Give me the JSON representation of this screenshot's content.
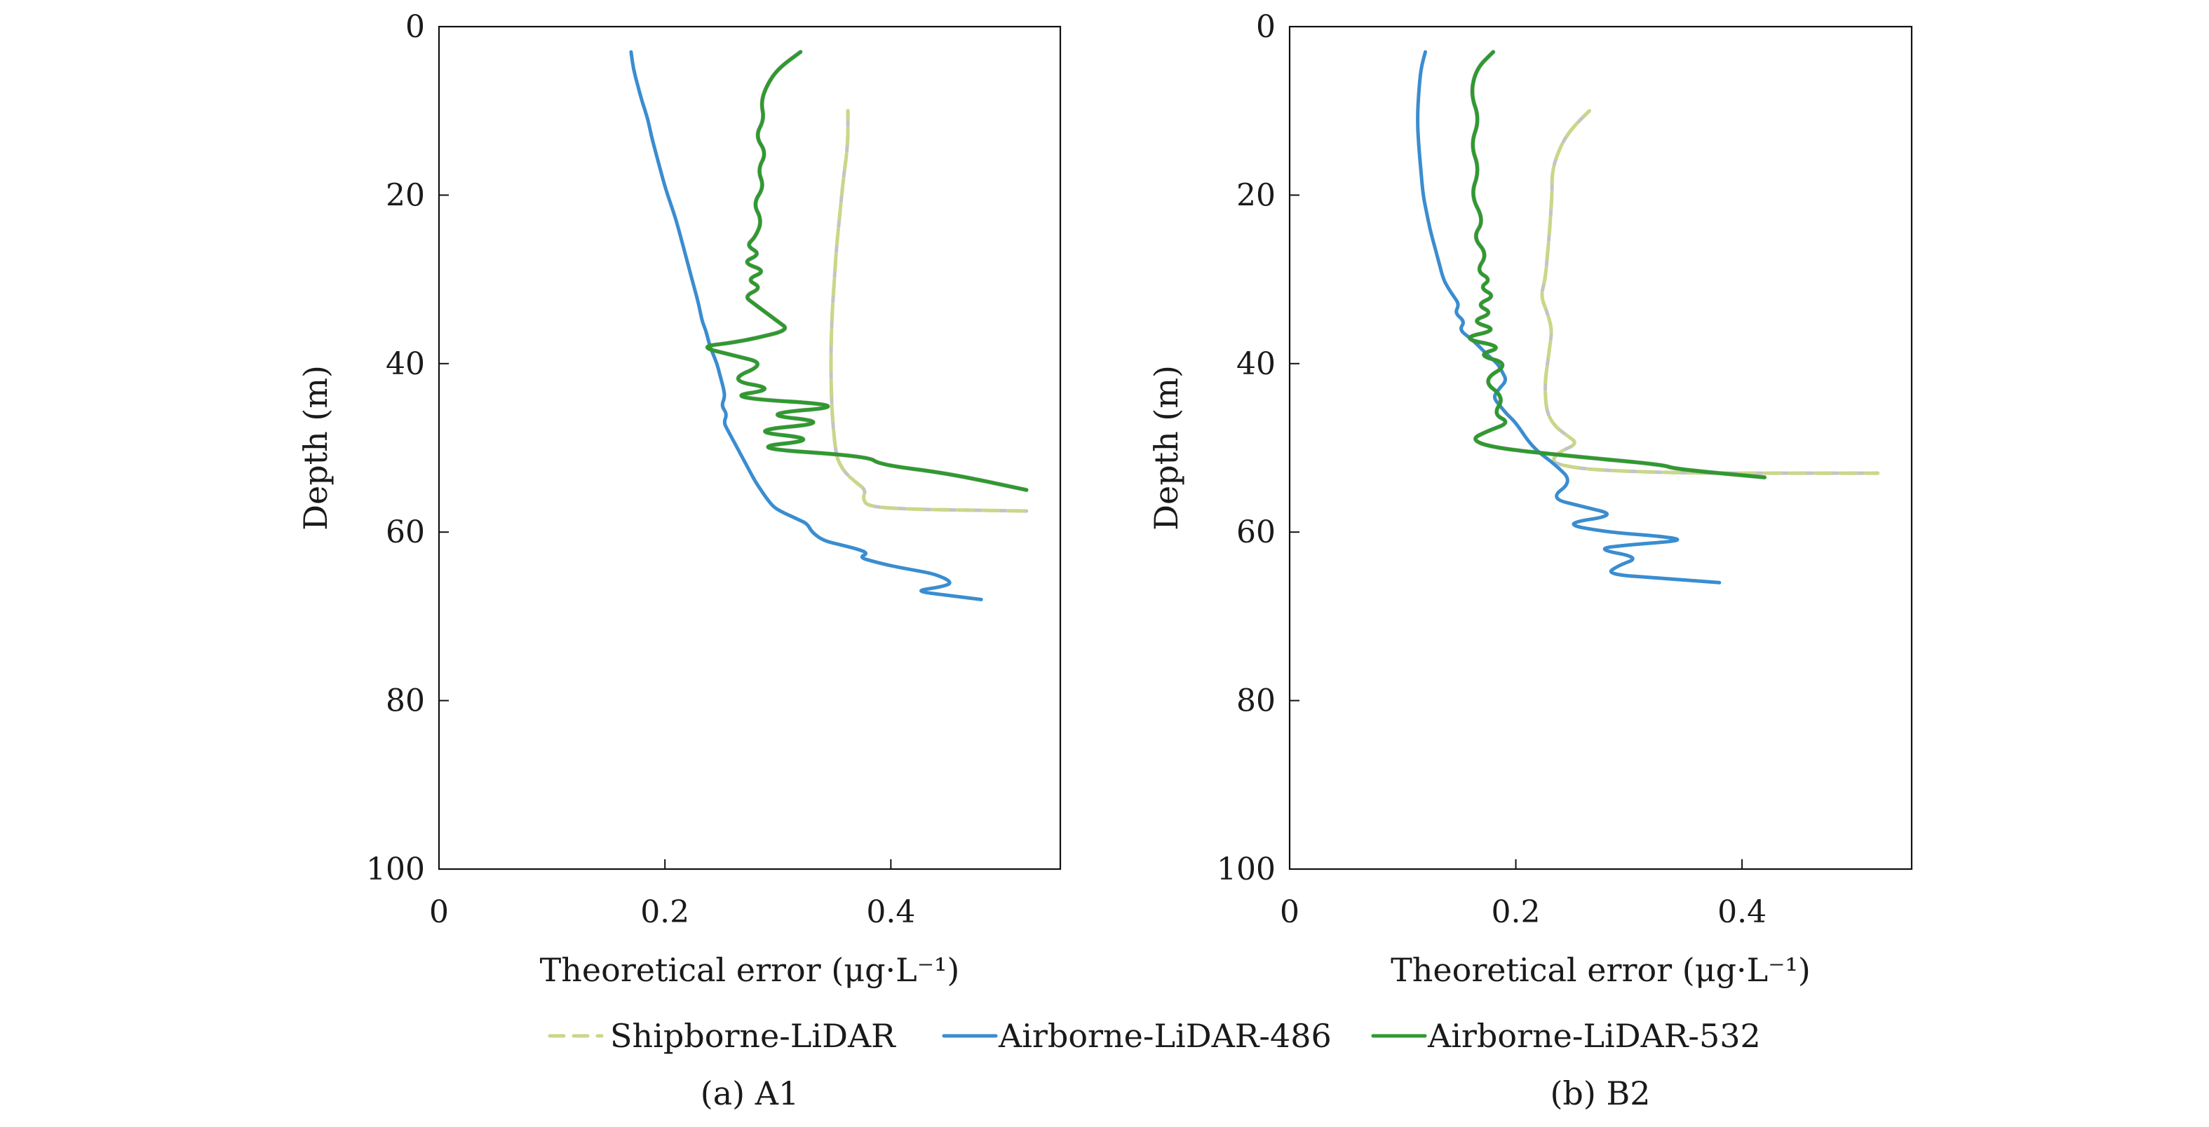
{
  "chart_data": [
    {
      "type": "line",
      "caption": "(a) A1",
      "xlabel": "Theoretical error (μg·L⁻¹)",
      "ylabel": "Depth (m)",
      "xlim": [
        0,
        0.55
      ],
      "ylim": [
        0,
        100
      ],
      "y_inverted": true,
      "xticks": [
        0,
        0.2,
        0.4
      ],
      "xtick_labels": [
        "0",
        "0.2",
        "0.4"
      ],
      "yticks": [
        0,
        20,
        40,
        60,
        80,
        100
      ],
      "ytick_labels": [
        "0",
        "20",
        "40",
        "60",
        "80",
        "100"
      ],
      "grid": false,
      "series": [
        {
          "name": "Shipborne-LiDAR",
          "style": "dashed",
          "color": "#c8d888",
          "color_alt": "#c4c4c4",
          "x": [
            0.362,
            0.362,
            0.358,
            0.355,
            0.352,
            0.35,
            0.348,
            0.347,
            0.347,
            0.348,
            0.35,
            0.352,
            0.355,
            0.36,
            0.368,
            0.378,
            0.375,
            0.38,
            0.42,
            0.47,
            0.52
          ],
          "y": [
            10,
            14,
            18,
            22,
            26,
            30,
            34,
            38,
            42,
            46,
            49,
            51,
            52,
            53,
            54,
            55,
            56,
            57,
            57.3,
            57.4,
            57.5
          ]
        },
        {
          "name": "Airborne-LiDAR-486",
          "style": "solid",
          "color": "#3a8dd0",
          "x": [
            0.17,
            0.172,
            0.176,
            0.18,
            0.185,
            0.188,
            0.192,
            0.196,
            0.2,
            0.205,
            0.21,
            0.214,
            0.218,
            0.222,
            0.226,
            0.23,
            0.233,
            0.236,
            0.238,
            0.24,
            0.243,
            0.246,
            0.248,
            0.25,
            0.252,
            0.253,
            0.25,
            0.255,
            0.252,
            0.256,
            0.26,
            0.264,
            0.268,
            0.272,
            0.276,
            0.28,
            0.285,
            0.29,
            0.296,
            0.302,
            0.31,
            0.318,
            0.326,
            0.33,
            0.34,
            0.355,
            0.37,
            0.38,
            0.372,
            0.385,
            0.4,
            0.42,
            0.44,
            0.455,
            0.445,
            0.42,
            0.45,
            0.48
          ],
          "y": [
            3,
            5,
            7,
            9,
            11,
            13,
            15,
            17,
            19,
            21,
            23,
            25,
            27,
            29,
            31,
            33,
            35,
            36,
            37,
            38,
            39,
            40,
            41,
            42,
            43,
            44,
            45,
            46,
            47,
            48,
            49,
            50,
            51,
            52,
            53,
            54,
            55,
            56,
            57,
            57.5,
            58,
            58.5,
            59,
            60,
            61,
            61.5,
            62,
            62.5,
            63,
            63.5,
            64,
            64.5,
            65,
            66,
            66.5,
            67,
            67.5,
            68
          ]
        },
        {
          "name": "Airborne-LiDAR-532",
          "style": "solid",
          "color": "#2e9a2e",
          "color_alt": "#666666",
          "x": [
            0.32,
            0.3,
            0.29,
            0.285,
            0.288,
            0.28,
            0.29,
            0.282,
            0.288,
            0.278,
            0.286,
            0.28,
            0.272,
            0.285,
            0.268,
            0.29,
            0.272,
            0.286,
            0.27,
            0.28,
            0.29,
            0.3,
            0.31,
            0.28,
            0.26,
            0.23,
            0.26,
            0.29,
            0.255,
            0.3,
            0.25,
            0.37,
            0.28,
            0.35,
            0.27,
            0.34,
            0.27,
            0.38,
            0.39,
            0.45,
            0.52
          ],
          "y": [
            3,
            5,
            7,
            9,
            11,
            13,
            15,
            17,
            19,
            21,
            23,
            25,
            26,
            27,
            28,
            29,
            30,
            31,
            32,
            33,
            34,
            35,
            36,
            37,
            37.5,
            38,
            39,
            40,
            42,
            43,
            44,
            45,
            46,
            47,
            48,
            49,
            50,
            51,
            52,
            53,
            55
          ]
        }
      ]
    },
    {
      "type": "line",
      "caption": "(b) B2",
      "xlabel": "Theoretical error (μg·L⁻¹)",
      "ylabel": "Depth (m)",
      "xlim": [
        0,
        0.55
      ],
      "ylim": [
        0,
        100
      ],
      "y_inverted": true,
      "xticks": [
        0,
        0.2,
        0.4
      ],
      "xtick_labels": [
        "0",
        "0.2",
        "0.4"
      ],
      "yticks": [
        0,
        20,
        40,
        60,
        80,
        100
      ],
      "ytick_labels": [
        "0",
        "20",
        "40",
        "60",
        "80",
        "100"
      ],
      "grid": false,
      "series": [
        {
          "name": "Shipborne-LiDAR",
          "style": "dashed",
          "color": "#c8d888",
          "color_alt": "#c4c4c4",
          "x": [
            0.265,
            0.25,
            0.24,
            0.232,
            0.232,
            0.23,
            0.228,
            0.226,
            0.222,
            0.228,
            0.232,
            0.23,
            0.228,
            0.226,
            0.226,
            0.228,
            0.235,
            0.245,
            0.255,
            0.238,
            0.232,
            0.238,
            0.26,
            0.3,
            0.36,
            0.44,
            0.52
          ],
          "y": [
            10,
            12,
            14,
            17,
            20,
            24,
            27,
            30,
            32,
            34,
            36,
            38,
            40,
            42,
            44,
            46,
            47.5,
            48.5,
            49.5,
            50.5,
            51.5,
            52,
            52.5,
            52.8,
            53,
            53,
            53
          ]
        },
        {
          "name": "Airborne-LiDAR-486",
          "style": "solid",
          "color": "#3a8dd0",
          "x": [
            0.12,
            0.116,
            0.114,
            0.113,
            0.114,
            0.116,
            0.118,
            0.121,
            0.124,
            0.128,
            0.132,
            0.136,
            0.14,
            0.145,
            0.15,
            0.146,
            0.155,
            0.15,
            0.16,
            0.168,
            0.175,
            0.184,
            0.188,
            0.192,
            0.185,
            0.18,
            0.186,
            0.192,
            0.2,
            0.215,
            0.235,
            0.25,
            0.23,
            0.26,
            0.29,
            0.24,
            0.28,
            0.33,
            0.35,
            0.3,
            0.27,
            0.31,
            0.29,
            0.28,
            0.33,
            0.38
          ],
          "y": [
            3,
            5,
            8,
            11,
            14,
            17,
            20,
            22,
            24,
            26,
            28,
            30,
            31,
            32,
            33,
            34,
            35,
            36,
            37,
            38,
            39,
            40,
            41,
            42,
            43,
            44,
            45,
            46,
            47,
            50,
            52,
            54,
            56,
            57,
            58,
            59,
            60,
            60.5,
            61,
            61.5,
            62,
            63,
            64,
            65,
            65.5,
            66
          ]
        },
        {
          "name": "Airborne-LiDAR-532",
          "style": "solid",
          "color": "#2e9a2e",
          "color_alt": "#666666",
          "x": [
            0.18,
            0.165,
            0.16,
            0.168,
            0.16,
            0.168,
            0.16,
            0.172,
            0.162,
            0.175,
            0.165,
            0.178,
            0.168,
            0.182,
            0.165,
            0.18,
            0.16,
            0.185,
            0.15,
            0.19,
            0.165,
            0.195,
            0.17,
            0.19,
            0.18,
            0.195,
            0.175,
            0.16,
            0.18,
            0.25,
            0.33,
            0.34,
            0.42
          ],
          "y": [
            3,
            5,
            8,
            11,
            14,
            17,
            20,
            23,
            25,
            27,
            29,
            30,
            31,
            32,
            33,
            34,
            35,
            36,
            37,
            38,
            39,
            40,
            42,
            44,
            46,
            47,
            48,
            49,
            50,
            51,
            52,
            52.5,
            53.5
          ]
        }
      ]
    }
  ],
  "legend": {
    "placement": "bottom-center",
    "items": [
      {
        "label": "Shipborne-LiDAR",
        "style": "dashed",
        "color": "#c8d888"
      },
      {
        "label": "Airborne-LiDAR-486",
        "style": "solid",
        "color": "#3a8dd0"
      },
      {
        "label": "Airborne-LiDAR-532",
        "style": "solid",
        "color": "#2e9a2e"
      }
    ]
  }
}
